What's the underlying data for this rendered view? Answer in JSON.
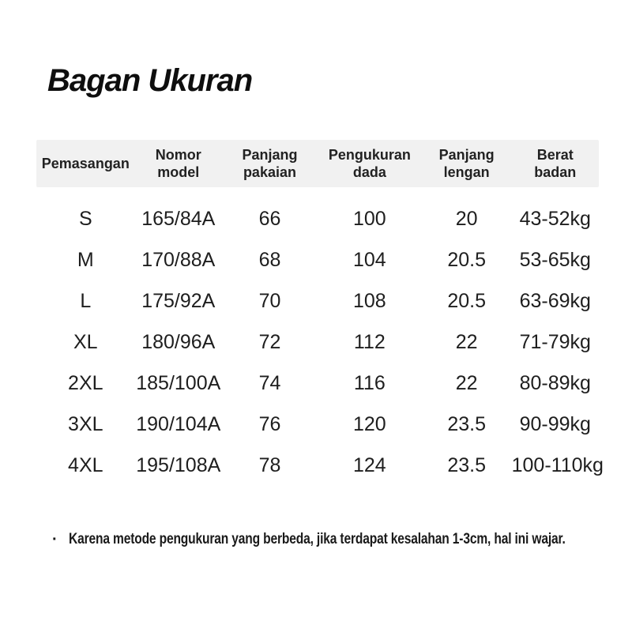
{
  "page": {
    "title": "Bagan Ukuran"
  },
  "colors": {
    "background": "#ffffff",
    "header_band": "#f1f1f1",
    "text": "#1e1e1e"
  },
  "table": {
    "headers": [
      "Pemasangan",
      "Nomor\nmodel",
      "Panjang\npakaian",
      "Pengukuran\ndada",
      "Panjang\nlengan",
      "Berat\nbadan"
    ],
    "rows": [
      [
        "S",
        "165/84A",
        "66",
        "100",
        "20",
        "43-52kg"
      ],
      [
        "M",
        "170/88A",
        "68",
        "104",
        "20.5",
        "53-65kg"
      ],
      [
        "L",
        "175/92A",
        "70",
        "108",
        "20.5",
        "63-69kg"
      ],
      [
        "XL",
        "180/96A",
        "72",
        "112",
        "22",
        "71-79kg"
      ],
      [
        "2XL",
        "185/100A",
        "74",
        "116",
        "22",
        "80-89kg"
      ],
      [
        "3XL",
        "190/104A",
        "76",
        "120",
        "23.5",
        "90-99kg"
      ],
      [
        "4XL",
        "195/108A",
        "78",
        "124",
        "23.5",
        "100-110kg"
      ]
    ]
  },
  "footnote": {
    "bullet": "·",
    "text": "Karena metode pengukuran yang berbeda, jika terdapat kesalahan 1-3cm, hal ini wajar."
  }
}
